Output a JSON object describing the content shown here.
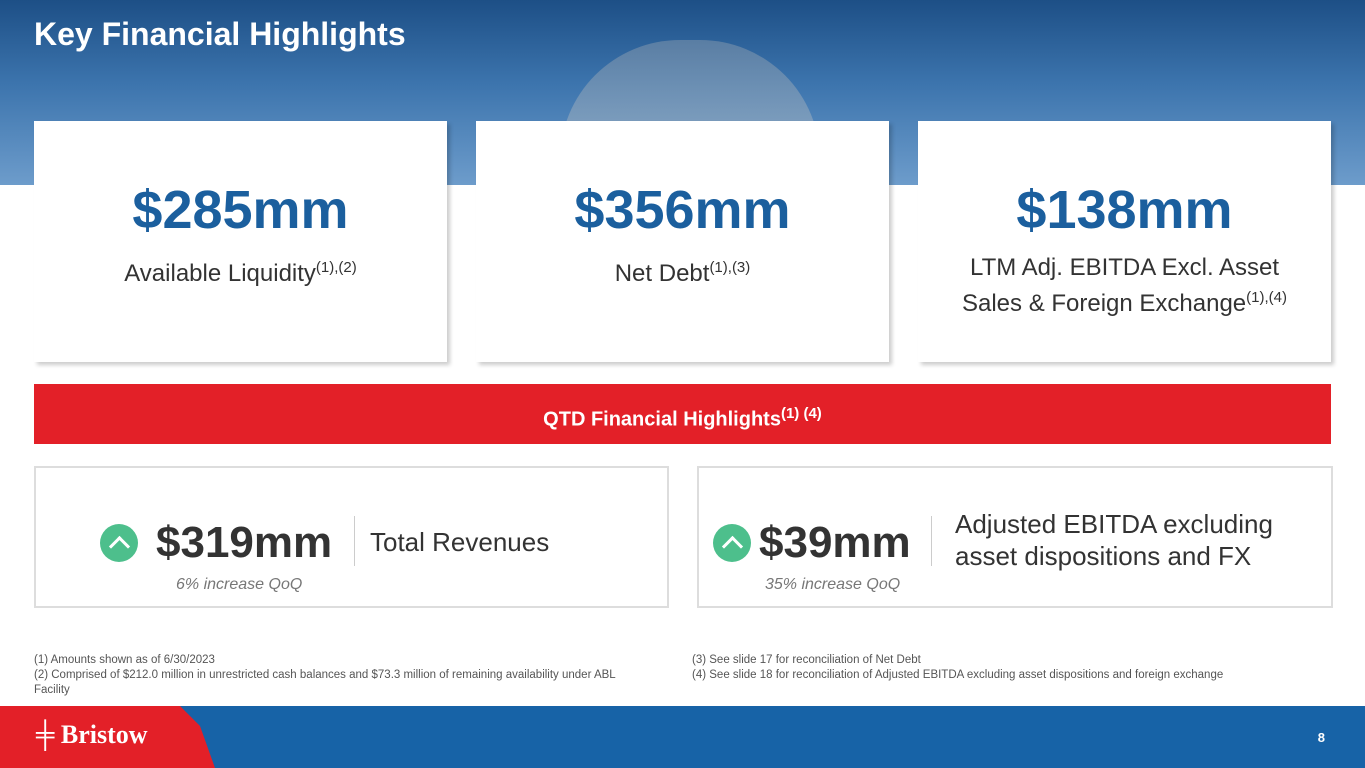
{
  "title": "Key Financial Highlights",
  "cards": [
    {
      "value": "$285mm",
      "label": "Available Liquidity",
      "sup": "(1),(2)"
    },
    {
      "value": "$356mm",
      "label": "Net Debt",
      "sup": "(1),(3)"
    },
    {
      "value": "$138mm",
      "label": "LTM Adj. EBITDA Excl. Asset Sales & Foreign Exchange",
      "sup": "(1),(4)"
    }
  ],
  "band": {
    "label": "QTD Financial Highlights",
    "sup": "(1) (4)"
  },
  "qtd": [
    {
      "value": "$319mm",
      "label": "Total Revenues",
      "change": "6% increase QoQ",
      "icon": "chevron-up-icon"
    },
    {
      "value": "$39mm",
      "label": "Adjusted EBITDA excluding asset dispositions and FX",
      "change": "35% increase QoQ",
      "icon": "chevron-up-icon"
    }
  ],
  "footnotes_left": [
    "(1) Amounts shown as of 6/30/2023",
    "(2) Comprised of $212.0 million in unrestricted cash balances and $73.3 million of remaining availability under ABL Facility"
  ],
  "footnotes_right": [
    "(3) See slide 17 for reconciliation of Net Debt",
    "(4) See slide 18 for reconciliation of Adjusted EBITDA excluding asset dispositions and foreign exchange"
  ],
  "logo": "Bristow",
  "page_number": "8"
}
